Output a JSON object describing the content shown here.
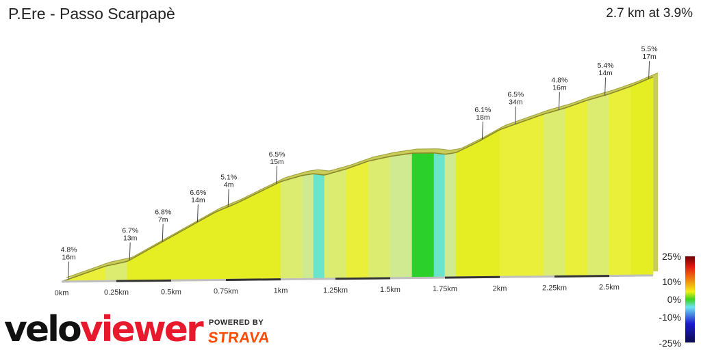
{
  "header": {
    "title": "P.Ere - Passo Scarpapè",
    "summary": "2.7 km at 3.9%"
  },
  "branding": {
    "logo_velo": "velo",
    "logo_viewer": "viewer",
    "powered_by": "POWERED BY",
    "strava": "STRAVA"
  },
  "legend": {
    "labels": [
      "25%",
      "10%",
      "0%",
      "-10%",
      "-25%"
    ],
    "colors": [
      "#6e0000",
      "#e01a10",
      "#f07b0e",
      "#f2ef16",
      "#3cd21c",
      "#6ee2f2",
      "#1b1bd0",
      "#0b0b50"
    ]
  },
  "chart_data": {
    "type": "area",
    "title": "P.Ere - Passo Scarpapè",
    "xlabel": "",
    "ylabel": "",
    "xlim": [
      0,
      2.7
    ],
    "x_ticks": [
      {
        "value": 0,
        "label": "0km"
      },
      {
        "value": 0.25,
        "label": "0.25km"
      },
      {
        "value": 0.5,
        "label": "0.5km"
      },
      {
        "value": 0.75,
        "label": "0.75km"
      },
      {
        "value": 1.0,
        "label": "1km"
      },
      {
        "value": 1.25,
        "label": "1.25km"
      },
      {
        "value": 1.5,
        "label": "1.5km"
      },
      {
        "value": 1.75,
        "label": "1.75km"
      },
      {
        "value": 2.0,
        "label": "2km"
      },
      {
        "value": 2.25,
        "label": "2.25km"
      },
      {
        "value": 2.5,
        "label": "2.5km"
      }
    ],
    "profile": {
      "distance_km": [
        0,
        0.1,
        0.2,
        0.3,
        0.4,
        0.5,
        0.6,
        0.7,
        0.8,
        0.9,
        1.0,
        1.1,
        1.15,
        1.2,
        1.3,
        1.4,
        1.5,
        1.6,
        1.7,
        1.75,
        1.8,
        1.9,
        2.0,
        2.1,
        2.2,
        2.3,
        2.4,
        2.5,
        2.6,
        2.7
      ],
      "elevation_rel_m": [
        0,
        5,
        10,
        13,
        21,
        29,
        37,
        45,
        51,
        58,
        65,
        69,
        70,
        69,
        73,
        78,
        81,
        83,
        83,
        82,
        83,
        90,
        98,
        103,
        108,
        112,
        117,
        121,
        126,
        132
      ],
      "grade_pct": [
        5.0,
        5.0,
        3.0,
        8.0,
        8.0,
        8.0,
        8.0,
        6.0,
        7.0,
        7.0,
        4.0,
        2.0,
        -2.0,
        4.0,
        5.0,
        3.0,
        2.0,
        0.0,
        -2.0,
        2.0,
        7.0,
        8.0,
        5.0,
        5.0,
        4.0,
        5.0,
        4.0,
        5.0,
        6.0
      ]
    },
    "annotations": [
      {
        "x_km": 0.03,
        "grade": "4.8%",
        "length": "16m"
      },
      {
        "x_km": 0.31,
        "grade": "6.7%",
        "length": "13m"
      },
      {
        "x_km": 0.46,
        "grade": "6.8%",
        "length": "7m"
      },
      {
        "x_km": 0.62,
        "grade": "6.6%",
        "length": "14m"
      },
      {
        "x_km": 0.76,
        "grade": "5.1%",
        "length": "4m"
      },
      {
        "x_km": 0.98,
        "grade": "6.5%",
        "length": "15m"
      },
      {
        "x_km": 1.92,
        "grade": "6.1%",
        "length": "18m"
      },
      {
        "x_km": 2.07,
        "grade": "6.5%",
        "length": "34m"
      },
      {
        "x_km": 2.27,
        "grade": "4.8%",
        "length": "16m"
      },
      {
        "x_km": 2.48,
        "grade": "5.4%",
        "length": "14m"
      },
      {
        "x_km": 2.68,
        "grade": "5.5%",
        "length": "17m"
      }
    ]
  }
}
